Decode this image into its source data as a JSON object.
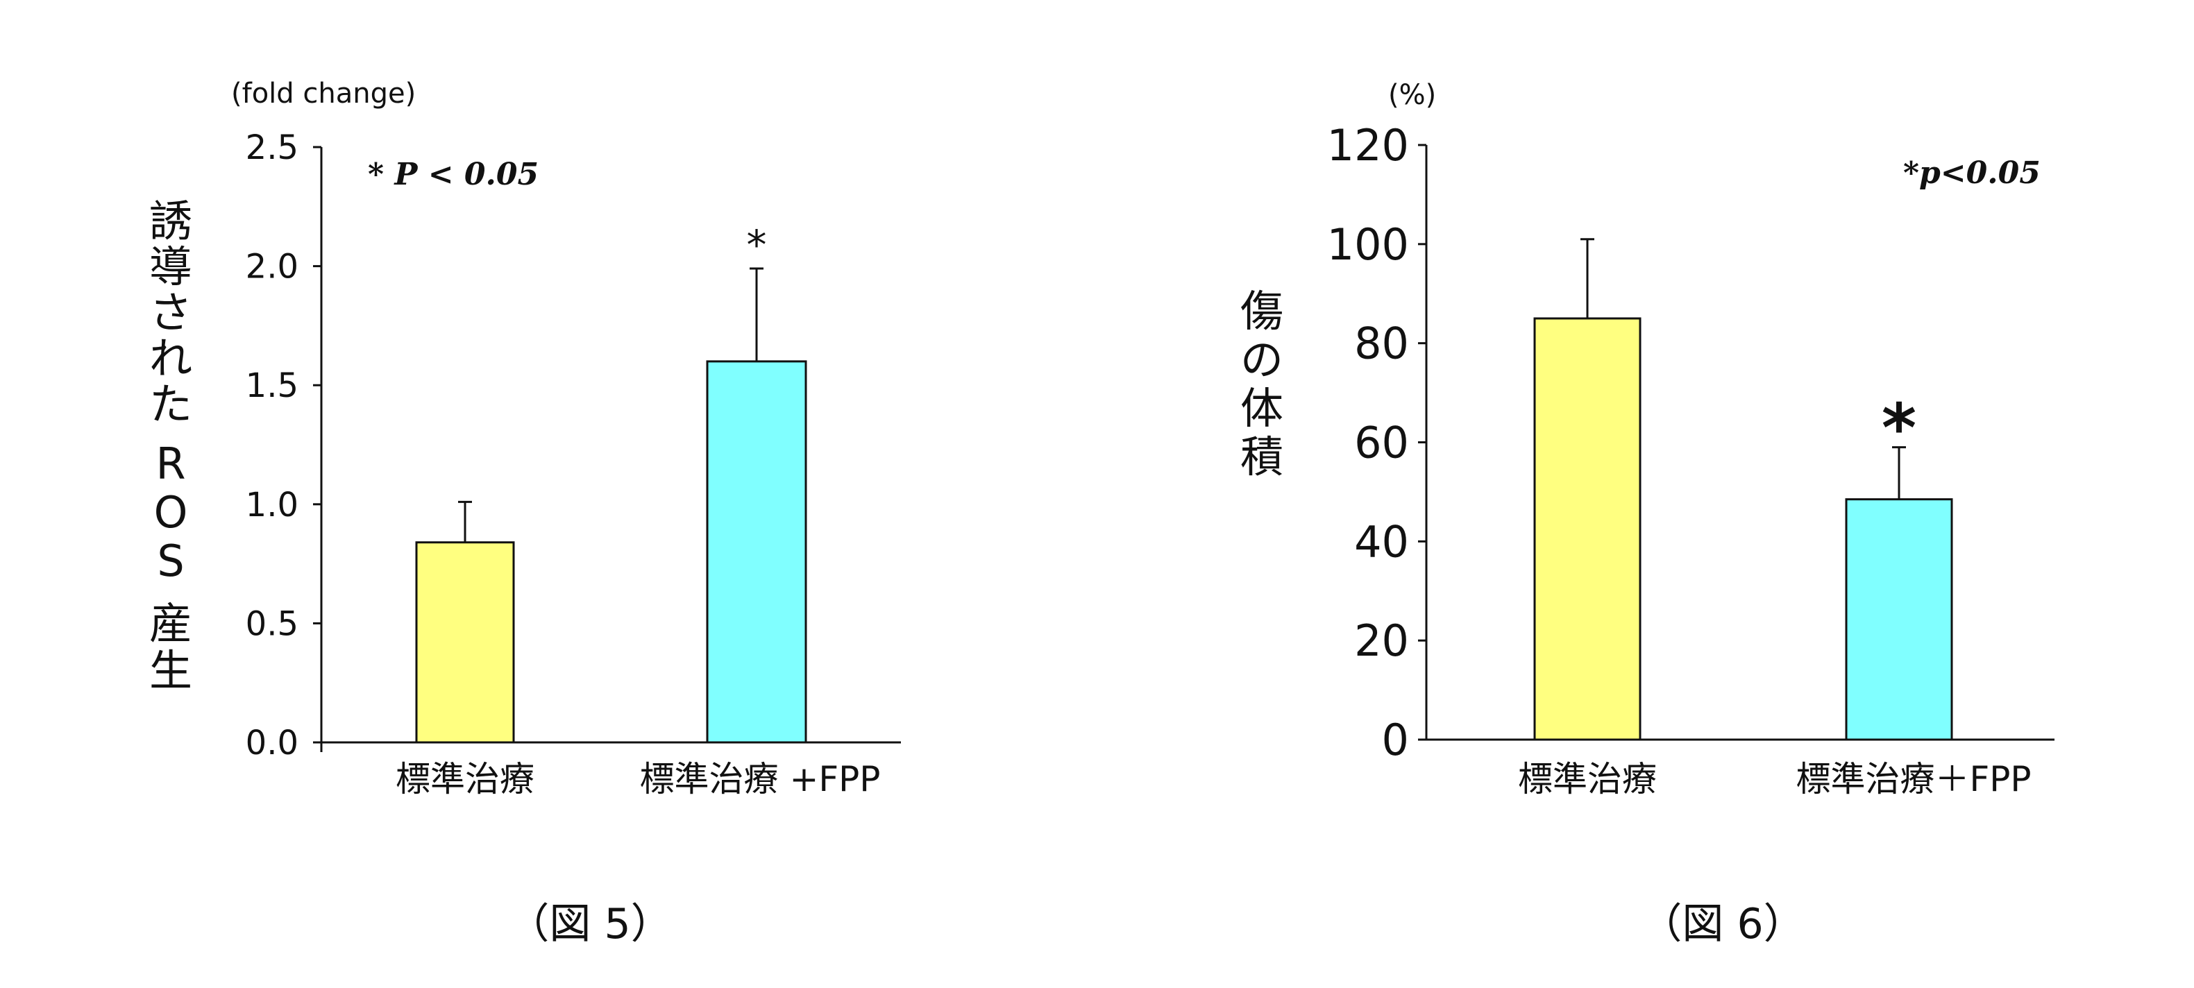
{
  "charts": [
    {
      "unit_label": "(fold change)",
      "ylabel_chars": [
        "誘",
        "導",
        "さ",
        "れ",
        "た",
        "R",
        "O",
        "S",
        "産",
        "生"
      ],
      "significance_note": "* P < 0.05",
      "caption": "（図 5）"
    },
    {
      "unit_label": "(%)",
      "ylabel_chars": [
        "傷",
        "の",
        "体",
        "積"
      ],
      "significance_note": "*p<0.05",
      "caption": "（図 6）"
    }
  ],
  "chart_data": [
    {
      "type": "bar",
      "title": "",
      "ylabel": "誘導されたROS産生",
      "ylim": [
        0,
        2.5
      ],
      "yticks": [
        "0.0",
        "0.5",
        "1.0",
        "1.5",
        "2.0",
        "2.5"
      ],
      "categories": [
        "標準治療",
        "標準治療 +FPP"
      ],
      "values": [
        0.84,
        1.6
      ],
      "errors": [
        0.17,
        0.39
      ],
      "significance": [
        "",
        "*"
      ],
      "colors": [
        "#ffff80",
        "#80ffff"
      ],
      "grid": false
    },
    {
      "type": "bar",
      "title": "",
      "ylabel": "傷の体積",
      "ylim": [
        0,
        120
      ],
      "yticks": [
        "0",
        "20",
        "40",
        "60",
        "80",
        "100",
        "120"
      ],
      "categories": [
        "標準治療",
        "標準治療＋FPP"
      ],
      "values": [
        85,
        48.5
      ],
      "errors": [
        16,
        10.5
      ],
      "significance": [
        "",
        "*"
      ],
      "colors": [
        "#ffff80",
        "#80ffff"
      ],
      "grid": false
    }
  ]
}
